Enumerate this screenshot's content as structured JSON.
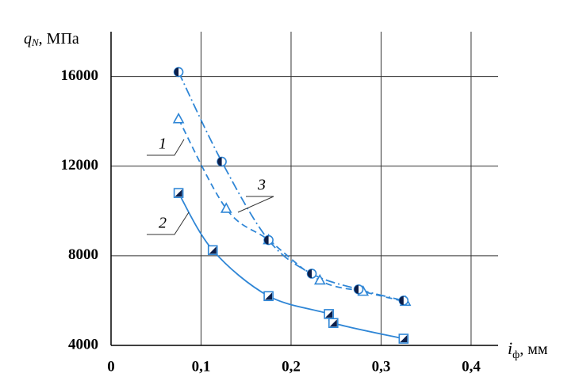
{
  "chart_data": {
    "type": "line",
    "ylabel": {
      "symbol": "q",
      "subscript": "N",
      "unit": ", МПа"
    },
    "xlabel": {
      "symbol": "i",
      "subscript": "ф",
      "unit": ", мм"
    },
    "xlim": [
      0,
      0.43
    ],
    "ylim": [
      4000,
      18000
    ],
    "xticks": [
      0,
      {
        "value": 0.1,
        "label": "0,1"
      },
      {
        "value": 0.2,
        "label": "0,2"
      },
      {
        "value": 0.3,
        "label": "0,3"
      },
      {
        "value": 0.4,
        "label": "0,4"
      }
    ],
    "yticks": [
      4000,
      8000,
      12000,
      16000
    ],
    "grid": true,
    "series": [
      {
        "name": "1",
        "color": "#2f86d6",
        "marker": "triangle",
        "dash": "dashed",
        "x": [
          0.075,
          0.128,
          0.175,
          0.232,
          0.28,
          0.327
        ],
        "values": [
          14100,
          10100,
          8700,
          6900,
          6400,
          5950
        ]
      },
      {
        "name": "2",
        "color": "#2f86d6",
        "marker": "square",
        "dash": "solid",
        "x": [
          0.075,
          0.113,
          0.175,
          0.242,
          0.247,
          0.325
        ],
        "values": [
          10800,
          8250,
          6200,
          5400,
          5000,
          4300
        ]
      },
      {
        "name": "3",
        "color": "#2f86d6",
        "marker": "circle",
        "dash": "dashdot",
        "x": [
          0.075,
          0.123,
          0.175,
          0.223,
          0.275,
          0.325
        ],
        "values": [
          16200,
          12200,
          8700,
          7200,
          6500,
          6000
        ]
      }
    ]
  }
}
